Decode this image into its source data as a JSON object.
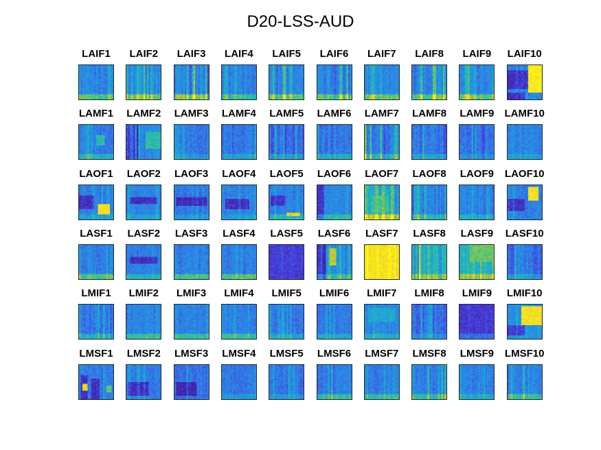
{
  "chart_data": {
    "type": "heatmap",
    "title": "D20-LSS-AUD",
    "colormap": [
      "#3e26a8",
      "#4742e0",
      "#2f7fe6",
      "#1ba5d9",
      "#2ec09e",
      "#a8c634",
      "#f5d62a",
      "#f9fb0e"
    ],
    "panels": [
      {
        "label": "LAIF1",
        "base": 0.33,
        "stripes": 0.3,
        "top": 0,
        "bottom": 0.3,
        "hot": [],
        "dark": []
      },
      {
        "label": "LAIF2",
        "base": 0.33,
        "stripes": 0.32,
        "top": 0,
        "bottom": 0.3,
        "hot": [],
        "dark": []
      },
      {
        "label": "LAIF3",
        "base": 0.34,
        "stripes": 0.4,
        "top": 0,
        "bottom": 0.35,
        "hot": [],
        "dark": []
      },
      {
        "label": "LAIF4",
        "base": 0.3,
        "stripes": 0.28,
        "top": 0,
        "bottom": 0.25,
        "hot": [],
        "dark": []
      },
      {
        "label": "LAIF5",
        "base": 0.32,
        "stripes": 0.3,
        "top": 0,
        "bottom": 0.3,
        "hot": [],
        "dark": []
      },
      {
        "label": "LAIF6",
        "base": 0.3,
        "stripes": 0.32,
        "top": 0,
        "bottom": 0.3,
        "hot": [],
        "dark": []
      },
      {
        "label": "LAIF7",
        "base": 0.33,
        "stripes": 0.2,
        "top": 0,
        "bottom": 0.3,
        "hot": [],
        "dark": []
      },
      {
        "label": "LAIF8",
        "base": 0.33,
        "stripes": 0.35,
        "top": 0,
        "bottom": 0.3,
        "hot": [],
        "dark": []
      },
      {
        "label": "LAIF9",
        "base": 0.33,
        "stripes": 0.32,
        "top": 0,
        "bottom": 0.3,
        "hot": [],
        "dark": []
      },
      {
        "label": "LAIF10",
        "base": 0.3,
        "stripes": 0.1,
        "top": 0,
        "bottom": 0,
        "hot": [
          [
            0.6,
            0,
            0.4,
            0.8,
            1.0
          ]
        ],
        "dark": [
          [
            0,
            0.15,
            0.6,
            0.55
          ],
          [
            0,
            0.8,
            0.5,
            0.2
          ]
        ]
      },
      {
        "label": "LAMF1",
        "base": 0.3,
        "stripes": 0.18,
        "top": 0,
        "bottom": 0.2,
        "hot": [
          [
            0.5,
            0.3,
            0.25,
            0.3,
            0.6
          ]
        ],
        "dark": []
      },
      {
        "label": "LAMF2",
        "base": 0.3,
        "stripes": 0.3,
        "top": 0,
        "bottom": 0,
        "hot": [
          [
            0.55,
            0.2,
            0.45,
            0.5,
            0.6
          ]
        ],
        "dark": [
          [
            0,
            0,
            0.35,
            1
          ]
        ]
      },
      {
        "label": "LAMF3",
        "base": 0.28,
        "stripes": 0.15,
        "top": 0,
        "bottom": 0.1,
        "hot": [],
        "dark": []
      },
      {
        "label": "LAMF4",
        "base": 0.27,
        "stripes": 0.2,
        "top": 0,
        "bottom": 0.15,
        "hot": [],
        "dark": []
      },
      {
        "label": "LAMF5",
        "base": 0.25,
        "stripes": 0.28,
        "top": 0,
        "bottom": 0.15,
        "hot": [],
        "dark": []
      },
      {
        "label": "LAMF6",
        "base": 0.28,
        "stripes": 0.3,
        "top": 0,
        "bottom": 0.2,
        "hot": [],
        "dark": []
      },
      {
        "label": "LAMF7",
        "base": 0.3,
        "stripes": 0.38,
        "top": 0,
        "bottom": 0.2,
        "hot": [],
        "dark": []
      },
      {
        "label": "LAMF8",
        "base": 0.27,
        "stripes": 0.3,
        "top": 0,
        "bottom": 0.15,
        "hot": [],
        "dark": []
      },
      {
        "label": "LAMF9",
        "base": 0.26,
        "stripes": 0.25,
        "top": 0,
        "bottom": 0.1,
        "hot": [],
        "dark": []
      },
      {
        "label": "LAMF10",
        "base": 0.3,
        "stripes": 0.1,
        "top": 0,
        "bottom": 0.1,
        "hot": [],
        "dark": []
      },
      {
        "label": "LAOF1",
        "base": 0.3,
        "stripes": 0.15,
        "top": 0,
        "bottom": 0.1,
        "hot": [
          [
            0.55,
            0.55,
            0.35,
            0.3,
            0.95
          ]
        ],
        "dark": [
          [
            0,
            0.3,
            0.45,
            0.4
          ]
        ]
      },
      {
        "label": "LAOF2",
        "base": 0.3,
        "stripes": 0.15,
        "top": 0,
        "bottom": 0.1,
        "hot": [],
        "dark": [
          [
            0.1,
            0.35,
            0.8,
            0.2
          ]
        ]
      },
      {
        "label": "LAOF3",
        "base": 0.28,
        "stripes": 0.12,
        "top": 0,
        "bottom": 0.1,
        "hot": [],
        "dark": [
          [
            0.05,
            0.35,
            0.9,
            0.25
          ]
        ]
      },
      {
        "label": "LAOF4",
        "base": 0.3,
        "stripes": 0.15,
        "top": 0,
        "bottom": 0.1,
        "hot": [],
        "dark": [
          [
            0.1,
            0.4,
            0.7,
            0.3
          ]
        ]
      },
      {
        "label": "LAOF5",
        "base": 0.3,
        "stripes": 0.15,
        "top": 0,
        "bottom": 0.2,
        "hot": [
          [
            0.5,
            0.78,
            0.4,
            0.12,
            0.85
          ]
        ],
        "dark": [
          [
            0.05,
            0.3,
            0.4,
            0.3
          ]
        ]
      },
      {
        "label": "LAOF6",
        "base": 0.32,
        "stripes": 0.15,
        "top": 0,
        "bottom": 0.2,
        "hot": [],
        "dark": [
          [
            0,
            0,
            0.2,
            1
          ]
        ]
      },
      {
        "label": "LAOF7",
        "base": 0.45,
        "stripes": 0.25,
        "top": 0,
        "bottom": 0.3,
        "hot": [
          [
            0.2,
            0.3,
            0.5,
            0.5,
            0.65
          ]
        ],
        "dark": []
      },
      {
        "label": "LAOF8",
        "base": 0.28,
        "stripes": 0.3,
        "top": 0,
        "bottom": 0.2,
        "hot": [],
        "dark": []
      },
      {
        "label": "LAOF9",
        "base": 0.3,
        "stripes": 0.18,
        "top": 0,
        "bottom": 0.15,
        "hot": [],
        "dark": []
      },
      {
        "label": "LAOF10",
        "base": 0.3,
        "stripes": 0.12,
        "top": 0,
        "bottom": 0,
        "hot": [
          [
            0.6,
            0.05,
            0.3,
            0.4,
            0.95
          ]
        ],
        "dark": [
          [
            0,
            0.4,
            0.5,
            0.35
          ]
        ]
      },
      {
        "label": "LASF1",
        "base": 0.3,
        "stripes": 0.12,
        "top": 0,
        "bottom": 0.3,
        "hot": [],
        "dark": []
      },
      {
        "label": "LASF2",
        "base": 0.3,
        "stripes": 0.1,
        "top": 0,
        "bottom": 0.2,
        "hot": [],
        "dark": [
          [
            0.1,
            0.35,
            0.8,
            0.2
          ]
        ]
      },
      {
        "label": "LASF3",
        "base": 0.3,
        "stripes": 0.12,
        "top": 0,
        "bottom": 0.3,
        "hot": [],
        "dark": []
      },
      {
        "label": "LASF4",
        "base": 0.3,
        "stripes": 0.15,
        "top": 0,
        "bottom": 0.3,
        "hot": [],
        "dark": []
      },
      {
        "label": "LASF5",
        "base": 0.12,
        "stripes": 0.1,
        "top": 0,
        "bottom": 0,
        "hot": [],
        "dark": []
      },
      {
        "label": "LASF6",
        "base": 0.32,
        "stripes": 0.2,
        "top": 0,
        "bottom": 0.2,
        "hot": [
          [
            0.35,
            0.1,
            0.2,
            0.5,
            0.8
          ]
        ],
        "dark": [
          [
            0,
            0,
            0.25,
            1
          ]
        ]
      },
      {
        "label": "LASF7",
        "base": 0.9,
        "stripes": 0.1,
        "top": 0,
        "bottom": 0,
        "hot": [],
        "dark": []
      },
      {
        "label": "LASF8",
        "base": 0.45,
        "stripes": 0.4,
        "top": 0,
        "bottom": 0.2,
        "hot": [],
        "dark": []
      },
      {
        "label": "LASF9",
        "base": 0.5,
        "stripes": 0.25,
        "top": 0,
        "bottom": 0.2,
        "hot": [
          [
            0.3,
            0,
            0.7,
            0.5,
            0.7
          ]
        ],
        "dark": []
      },
      {
        "label": "LASF10",
        "base": 0.25,
        "stripes": 0.3,
        "top": 0,
        "bottom": 0.15,
        "hot": [],
        "dark": []
      },
      {
        "label": "LMIF1",
        "base": 0.28,
        "stripes": 0.2,
        "top": 0,
        "bottom": 0.2,
        "hot": [],
        "dark": []
      },
      {
        "label": "LMIF2",
        "base": 0.3,
        "stripes": 0.12,
        "top": 0,
        "bottom": 0.25,
        "hot": [],
        "dark": []
      },
      {
        "label": "LMIF3",
        "base": 0.3,
        "stripes": 0.12,
        "top": 0,
        "bottom": 0.25,
        "hot": [],
        "dark": []
      },
      {
        "label": "LMIF4",
        "base": 0.3,
        "stripes": 0.12,
        "top": 0,
        "bottom": 0.25,
        "hot": [],
        "dark": []
      },
      {
        "label": "LMIF5",
        "base": 0.27,
        "stripes": 0.2,
        "top": 0,
        "bottom": 0.15,
        "hot": [],
        "dark": []
      },
      {
        "label": "LMIF6",
        "base": 0.28,
        "stripes": 0.15,
        "top": 0,
        "bottom": 0.15,
        "hot": [],
        "dark": []
      },
      {
        "label": "LMIF7",
        "base": 0.32,
        "stripes": 0.15,
        "top": 0,
        "bottom": 0.15,
        "hot": [
          [
            0.1,
            0.1,
            0.8,
            0.4,
            0.5
          ]
        ],
        "dark": []
      },
      {
        "label": "LMIF8",
        "base": 0.25,
        "stripes": 0.2,
        "top": 0,
        "bottom": 0.1,
        "hot": [],
        "dark": []
      },
      {
        "label": "LMIF9",
        "base": 0.1,
        "stripes": 0.05,
        "top": 0,
        "bottom": 0.15,
        "hot": [],
        "dark": []
      },
      {
        "label": "LMIF10",
        "base": 0.35,
        "stripes": 0.1,
        "top": 0,
        "bottom": 0,
        "hot": [
          [
            0.4,
            0.05,
            0.6,
            0.55,
            0.95
          ]
        ],
        "dark": [
          [
            0,
            0.6,
            0.5,
            0.3
          ]
        ]
      },
      {
        "label": "LMSF1",
        "base": 0.3,
        "stripes": 0.1,
        "top": 0,
        "bottom": 0,
        "hot": [
          [
            0.12,
            0.55,
            0.15,
            0.2,
            0.9
          ],
          [
            0.8,
            0.6,
            0.15,
            0.2,
            0.7
          ]
        ],
        "dark": [
          [
            0.05,
            0.3,
            0.2,
            0.7
          ],
          [
            0.35,
            0.4,
            0.25,
            0.6
          ]
        ]
      },
      {
        "label": "LMSF2",
        "base": 0.28,
        "stripes": 0.15,
        "top": 0,
        "bottom": 0,
        "hot": [],
        "dark": [
          [
            0.05,
            0.5,
            0.6,
            0.4
          ]
        ]
      },
      {
        "label": "LMSF3",
        "base": 0.25,
        "stripes": 0.15,
        "top": 0,
        "bottom": 0,
        "hot": [],
        "dark": [
          [
            0.05,
            0.5,
            0.6,
            0.4
          ]
        ]
      },
      {
        "label": "LMSF4",
        "base": 0.28,
        "stripes": 0.12,
        "top": 0,
        "bottom": 0.1,
        "hot": [],
        "dark": []
      },
      {
        "label": "LMSF5",
        "base": 0.28,
        "stripes": 0.15,
        "top": 0,
        "bottom": 0.1,
        "hot": [],
        "dark": []
      },
      {
        "label": "LMSF6",
        "base": 0.3,
        "stripes": 0.2,
        "top": 0,
        "bottom": 0.25,
        "hot": [],
        "dark": []
      },
      {
        "label": "LMSF7",
        "base": 0.3,
        "stripes": 0.2,
        "top": 0,
        "bottom": 0.25,
        "hot": [],
        "dark": []
      },
      {
        "label": "LMSF8",
        "base": 0.3,
        "stripes": 0.25,
        "top": 0,
        "bottom": 0.25,
        "hot": [],
        "dark": []
      },
      {
        "label": "LMSF9",
        "base": 0.3,
        "stripes": 0.15,
        "top": 0,
        "bottom": 0.15,
        "hot": [],
        "dark": []
      },
      {
        "label": "LMSF10",
        "base": 0.32,
        "stripes": 0.35,
        "top": 0,
        "bottom": 0.25,
        "hot": [],
        "dark": []
      }
    ]
  }
}
